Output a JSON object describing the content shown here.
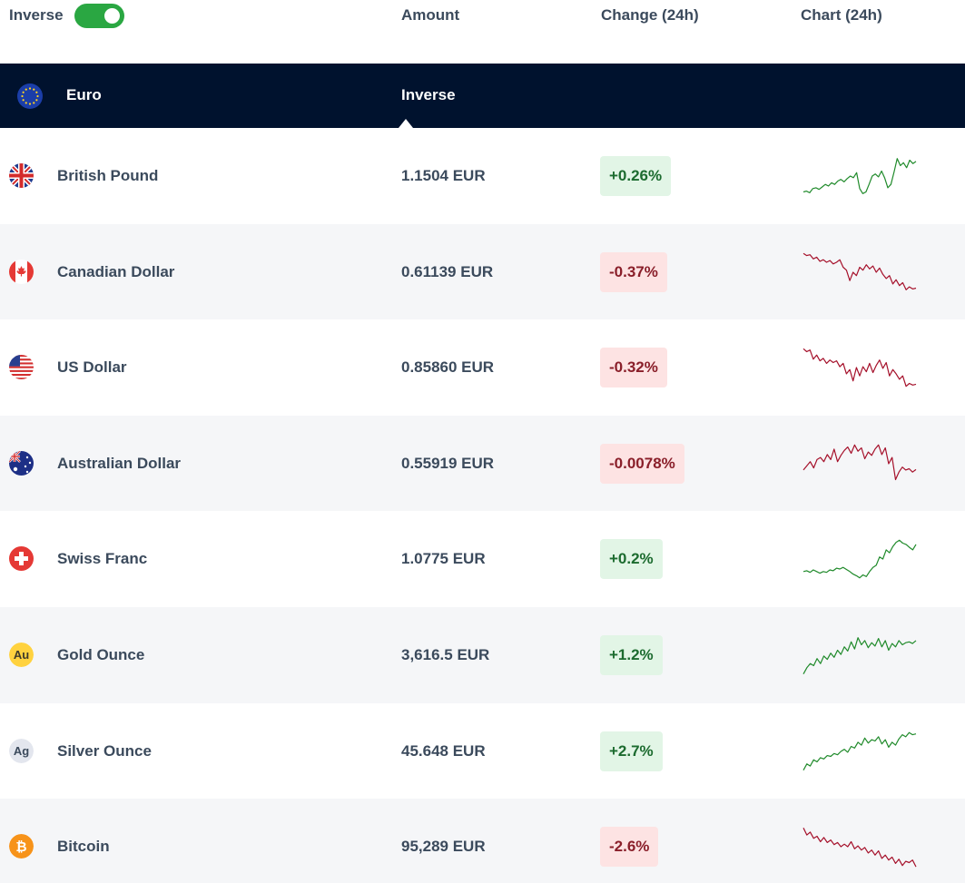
{
  "header": {
    "toggle_label": "Inverse",
    "toggle_on": true,
    "toggle_color": "#2aa742",
    "columns": {
      "amount": "Amount",
      "change": "Change (24h)",
      "chart": "Chart (24h)"
    }
  },
  "base": {
    "name": "Euro",
    "icon": "eu-flag-icon",
    "column_label": "Inverse",
    "bg_color": "#00122e"
  },
  "colors": {
    "up": "#1f8a2a",
    "down": "#a5102a",
    "up_bg": "#e2f5e6",
    "down_bg": "#fde3e3"
  },
  "currencies": [
    {
      "name": "British Pound",
      "amount": "1.1504 EUR",
      "change": "+0.26%",
      "direction": "up",
      "icon": "uk-flag-icon",
      "spark": [
        0.12,
        0.14,
        0.1,
        0.2,
        0.22,
        0.18,
        0.24,
        0.3,
        0.26,
        0.34,
        0.3,
        0.38,
        0.42,
        0.36,
        0.44,
        0.5,
        0.46,
        0.58,
        0.2,
        0.08,
        0.12,
        0.3,
        0.5,
        0.55,
        0.48,
        0.62,
        0.45,
        0.22,
        0.3,
        0.6,
        0.92,
        0.75,
        0.82,
        0.7,
        0.88,
        0.8,
        0.85
      ]
    },
    {
      "name": "Canadian Dollar",
      "amount": "0.61139 EUR",
      "change": "-0.37%",
      "direction": "down",
      "icon": "canada-flag-icon",
      "spark": [
        0.95,
        0.9,
        0.92,
        0.82,
        0.86,
        0.76,
        0.8,
        0.74,
        0.78,
        0.7,
        0.74,
        0.8,
        0.62,
        0.55,
        0.3,
        0.5,
        0.42,
        0.62,
        0.55,
        0.68,
        0.58,
        0.65,
        0.5,
        0.6,
        0.45,
        0.35,
        0.42,
        0.22,
        0.32,
        0.18,
        0.25,
        0.08,
        0.15,
        0.1,
        0.12
      ]
    },
    {
      "name": "US Dollar",
      "amount": "0.85860 EUR",
      "change": "-0.32%",
      "direction": "down",
      "icon": "us-flag-icon",
      "spark": [
        0.95,
        0.88,
        0.92,
        0.7,
        0.8,
        0.66,
        0.72,
        0.6,
        0.68,
        0.62,
        0.66,
        0.52,
        0.6,
        0.35,
        0.45,
        0.18,
        0.5,
        0.3,
        0.52,
        0.4,
        0.6,
        0.38,
        0.55,
        0.68,
        0.48,
        0.62,
        0.3,
        0.45,
        0.35,
        0.22,
        0.3,
        0.05,
        0.12,
        0.08,
        0.1
      ]
    },
    {
      "name": "Australian Dollar",
      "amount": "0.55919 EUR",
      "change": "-0.0078%",
      "direction": "down",
      "icon": "australia-flag-icon",
      "spark": [
        0.35,
        0.45,
        0.55,
        0.4,
        0.6,
        0.65,
        0.55,
        0.72,
        0.6,
        0.85,
        0.55,
        0.7,
        0.82,
        0.9,
        0.75,
        0.95,
        0.8,
        0.88,
        0.62,
        0.78,
        0.7,
        0.85,
        0.95,
        0.72,
        0.88,
        0.5,
        0.65,
        0.12,
        0.3,
        0.42,
        0.35,
        0.38,
        0.3,
        0.36
      ]
    },
    {
      "name": "Swiss Franc",
      "amount": "1.0775 EUR",
      "change": "+0.2%",
      "direction": "up",
      "icon": "swiss-flag-icon",
      "spark": [
        0.2,
        0.22,
        0.18,
        0.24,
        0.2,
        0.16,
        0.2,
        0.18,
        0.24,
        0.22,
        0.28,
        0.26,
        0.3,
        0.25,
        0.2,
        0.14,
        0.1,
        0.05,
        0.12,
        0.08,
        0.2,
        0.3,
        0.35,
        0.55,
        0.5,
        0.72,
        0.65,
        0.8,
        0.9,
        0.95,
        0.88,
        0.85,
        0.78,
        0.72,
        0.85
      ]
    },
    {
      "name": "Gold Ounce",
      "amount": "3,616.5 EUR",
      "change": "+1.2%",
      "direction": "up",
      "icon": "gold-au-icon",
      "spark": [
        0.05,
        0.2,
        0.3,
        0.25,
        0.42,
        0.3,
        0.48,
        0.4,
        0.55,
        0.45,
        0.62,
        0.52,
        0.7,
        0.6,
        0.82,
        0.65,
        0.92,
        0.75,
        0.85,
        0.68,
        0.8,
        0.72,
        0.9,
        0.7,
        0.85,
        0.62,
        0.78,
        0.7,
        0.85,
        0.75,
        0.8,
        0.82,
        0.78,
        0.85
      ]
    },
    {
      "name": "Silver Ounce",
      "amount": "45.648 EUR",
      "change": "+2.7%",
      "direction": "up",
      "icon": "silver-ag-icon",
      "spark": [
        0.05,
        0.2,
        0.15,
        0.3,
        0.25,
        0.35,
        0.32,
        0.4,
        0.38,
        0.45,
        0.42,
        0.5,
        0.55,
        0.48,
        0.62,
        0.58,
        0.72,
        0.65,
        0.82,
        0.7,
        0.78,
        0.75,
        0.85,
        0.68,
        0.78,
        0.6,
        0.72,
        0.65,
        0.8,
        0.9,
        0.85,
        0.95,
        0.9,
        0.92
      ]
    },
    {
      "name": "Bitcoin",
      "amount": "95,289 EUR",
      "change": "-2.6%",
      "direction": "down",
      "icon": "bitcoin-icon",
      "spark": [
        0.95,
        0.78,
        0.85,
        0.7,
        0.75,
        0.62,
        0.72,
        0.6,
        0.66,
        0.55,
        0.6,
        0.5,
        0.56,
        0.5,
        0.62,
        0.45,
        0.52,
        0.42,
        0.48,
        0.35,
        0.42,
        0.3,
        0.4,
        0.22,
        0.3,
        0.18,
        0.25,
        0.1,
        0.2,
        0.05,
        0.15,
        0.12,
        0.18,
        0.02
      ]
    }
  ]
}
